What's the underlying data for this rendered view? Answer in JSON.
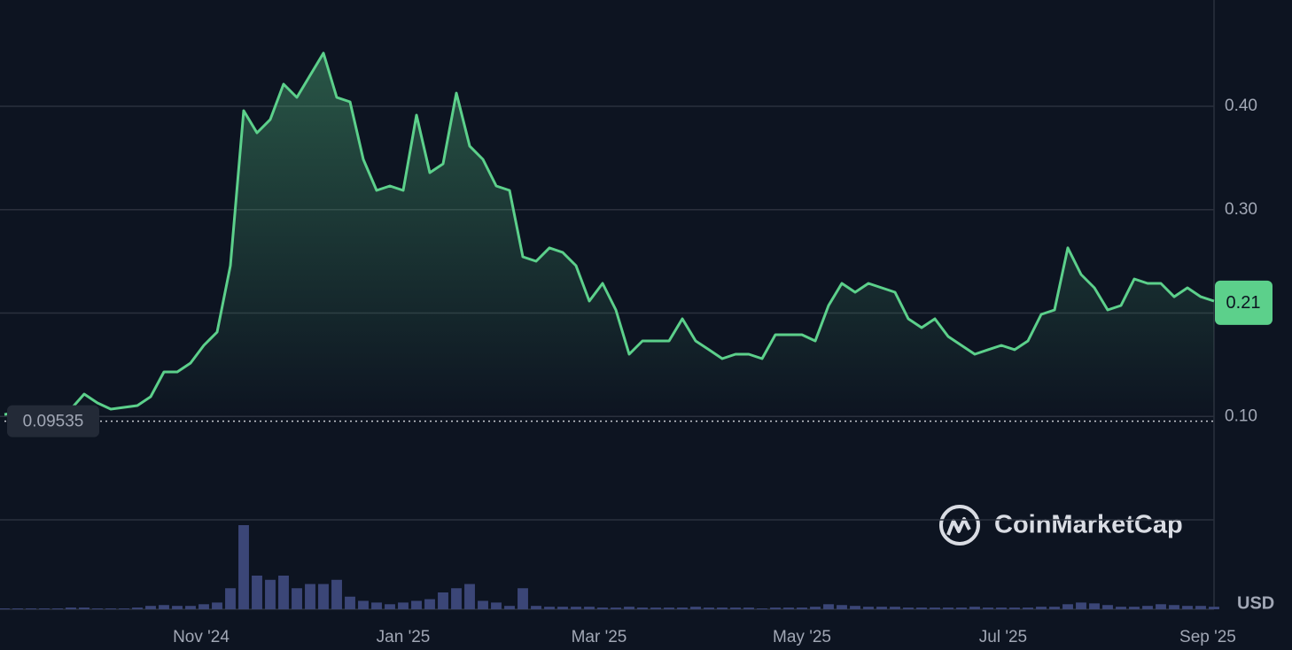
{
  "chart_data": {
    "type": "line",
    "values": [
      0.1019,
      0.1036,
      0.1045,
      0.1045,
      0.1062,
      0.1071,
      0.1216,
      0.1131,
      0.1071,
      0.1088,
      0.1105,
      0.1191,
      0.143,
      0.143,
      0.1516,
      0.1687,
      0.1816,
      0.2458,
      0.3957,
      0.3743,
      0.3872,
      0.4214,
      0.4086,
      0.43,
      0.4514,
      0.4086,
      0.4043,
      0.3486,
      0.3186,
      0.3229,
      0.3186,
      0.3914,
      0.3358,
      0.3443,
      0.4128,
      0.3615,
      0.3486,
      0.3229,
      0.3186,
      0.2544,
      0.2501,
      0.263,
      0.2587,
      0.2458,
      0.2116,
      0.2287,
      0.203,
      0.1602,
      0.173,
      0.173,
      0.173,
      0.1944,
      0.173,
      0.1645,
      0.1559,
      0.1602,
      0.1602,
      0.1559,
      0.179,
      0.179,
      0.179,
      0.173,
      0.2073,
      0.2287,
      0.2201,
      0.2287,
      0.2244,
      0.2201,
      0.1944,
      0.1859,
      0.1944,
      0.1773,
      0.1687,
      0.1602,
      0.1645,
      0.1687,
      0.1645,
      0.173,
      0.1987,
      0.203,
      0.263,
      0.2373,
      0.2244,
      0.203,
      0.2073,
      0.233,
      0.2287,
      0.2287,
      0.2158,
      0.2244,
      0.2158,
      0.2116
    ],
    "volume": [
      1,
      1,
      1,
      1,
      1,
      2,
      2,
      1,
      1,
      1,
      2,
      4,
      5,
      4,
      4,
      6,
      8,
      25,
      100,
      40,
      35,
      40,
      25,
      30,
      30,
      35,
      15,
      10,
      8,
      6,
      8,
      10,
      12,
      20,
      25,
      30,
      10,
      8,
      4,
      25,
      4,
      3,
      3,
      3,
      3,
      2,
      2,
      3,
      2,
      2,
      2,
      2,
      3,
      2,
      2,
      2,
      2,
      1,
      2,
      2,
      2,
      3,
      6,
      5,
      4,
      3,
      3,
      3,
      2,
      2,
      2,
      2,
      2,
      3,
      2,
      2,
      2,
      2,
      3,
      3,
      6,
      8,
      7,
      5,
      3,
      3,
      4,
      6,
      5,
      4,
      4,
      3
    ],
    "color": "#5cd08b",
    "volume_color": "#3b4677",
    "xlim": [
      0,
      91
    ],
    "xticks": [
      {
        "value": 14.8,
        "label": "Nov '24"
      },
      {
        "value": 30,
        "label": "Jan '25"
      },
      {
        "value": 44.73,
        "label": "Mar '25"
      },
      {
        "value": 60,
        "label": "May '25"
      },
      {
        "value": 75.13,
        "label": "Jul '25"
      },
      {
        "value": 90.53,
        "label": "Sep '25"
      }
    ],
    "ylim": [
      0,
      0.4985
    ],
    "yticks": [
      0,
      {
        "value": 0.1,
        "label": "0.10"
      },
      {
        "value": 0.2,
        "label": null
      },
      {
        "value": 0.3,
        "label": "0.30"
      },
      {
        "value": 0.4,
        "label": "0.40"
      }
    ],
    "grid": true,
    "start_value": 0.09535,
    "current_value": 0.21,
    "currency": "USD",
    "watermark": "CoinMarketCap"
  }
}
